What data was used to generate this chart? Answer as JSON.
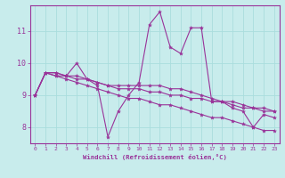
{
  "xlabel": "Windchill (Refroidissement éolien,°C)",
  "x_ticks": [
    0,
    1,
    2,
    3,
    4,
    5,
    6,
    7,
    8,
    9,
    10,
    11,
    12,
    13,
    14,
    15,
    16,
    17,
    18,
    19,
    20,
    21,
    22,
    23
  ],
  "y_ticks": [
    8,
    9,
    10,
    11
  ],
  "ylim": [
    7.5,
    11.8
  ],
  "xlim": [
    -0.5,
    23.5
  ],
  "bg_color": "#c8ecec",
  "line_color": "#993399",
  "grid_color": "#aadddd",
  "series": [
    [
      9.0,
      9.7,
      9.7,
      9.6,
      10.0,
      9.5,
      9.3,
      7.7,
      8.5,
      9.0,
      9.4,
      11.2,
      11.6,
      10.5,
      10.3,
      11.1,
      11.1,
      8.8,
      8.8,
      8.6,
      8.5,
      8.0,
      8.4,
      8.3
    ],
    [
      9.0,
      9.7,
      9.7,
      9.6,
      9.6,
      9.5,
      9.4,
      9.3,
      9.3,
      9.3,
      9.3,
      9.3,
      9.3,
      9.2,
      9.2,
      9.1,
      9.0,
      8.9,
      8.8,
      8.8,
      8.7,
      8.6,
      8.6,
      8.5
    ],
    [
      9.0,
      9.7,
      9.6,
      9.6,
      9.5,
      9.5,
      9.4,
      9.3,
      9.2,
      9.2,
      9.2,
      9.1,
      9.1,
      9.0,
      9.0,
      8.9,
      8.9,
      8.8,
      8.8,
      8.7,
      8.6,
      8.6,
      8.5,
      8.5
    ],
    [
      9.0,
      9.7,
      9.6,
      9.5,
      9.4,
      9.3,
      9.2,
      9.1,
      9.0,
      8.9,
      8.9,
      8.8,
      8.7,
      8.7,
      8.6,
      8.5,
      8.4,
      8.3,
      8.3,
      8.2,
      8.1,
      8.0,
      7.9,
      7.9
    ]
  ]
}
